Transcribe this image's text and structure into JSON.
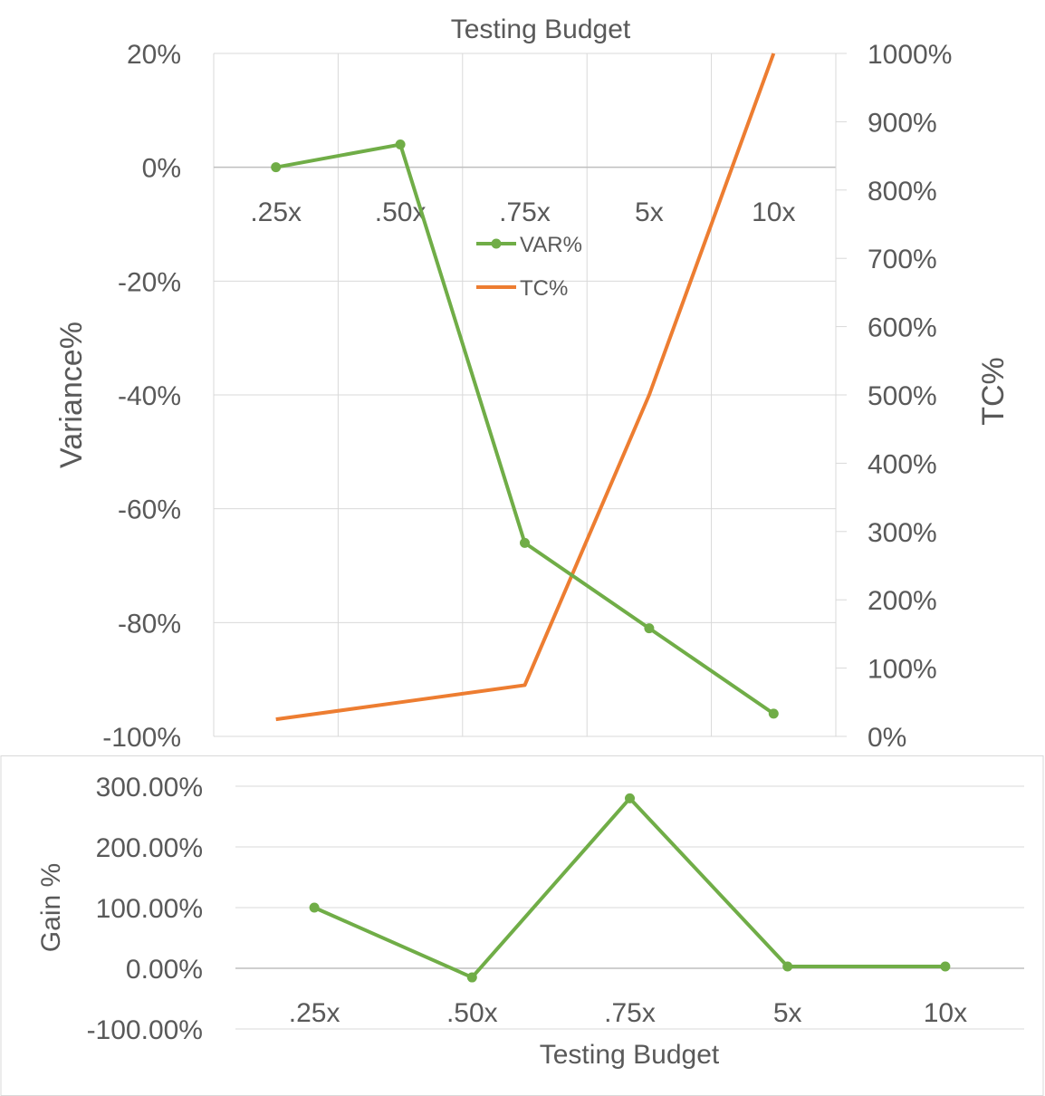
{
  "chart_data": [
    {
      "type": "line",
      "title": "Testing Budget",
      "categories": [
        ".25x",
        ".50x",
        ".75x",
        "5x",
        "10x"
      ],
      "ylabel": "Variance%",
      "y2label": "TC%",
      "ylim": [
        -100,
        20
      ],
      "y2lim": [
        0,
        1000
      ],
      "yticks": [
        "20%",
        "0%",
        "-20%",
        "-40%",
        "-60%",
        "-80%",
        "-100%"
      ],
      "y2ticks": [
        "1000%",
        "900%",
        "800%",
        "700%",
        "600%",
        "500%",
        "400%",
        "300%",
        "200%",
        "100%",
        "0%"
      ],
      "grid": true,
      "legend": "center",
      "series": [
        {
          "name": "VAR%",
          "axis": "left",
          "color": "#70ad47",
          "markers": true,
          "values": [
            0,
            4,
            -66,
            -81,
            -96
          ]
        },
        {
          "name": "TC%",
          "axis": "right",
          "color": "#ed7d31",
          "markers": false,
          "values": [
            25,
            50,
            75,
            500,
            1000
          ]
        }
      ]
    },
    {
      "type": "line",
      "title": "",
      "categories": [
        ".25x",
        ".50x",
        ".75x",
        "5x",
        "10x"
      ],
      "xlabel": "Testing Budget",
      "ylabel": "Gain %",
      "ylim": [
        -100,
        300
      ],
      "yticks": [
        "300.00%",
        "200.00%",
        "100.00%",
        "0.00%",
        "-100.00%"
      ],
      "grid": true,
      "series": [
        {
          "color": "#70ad47",
          "markers": true,
          "values": [
            100,
            -15,
            280,
            3,
            3
          ]
        }
      ]
    }
  ]
}
